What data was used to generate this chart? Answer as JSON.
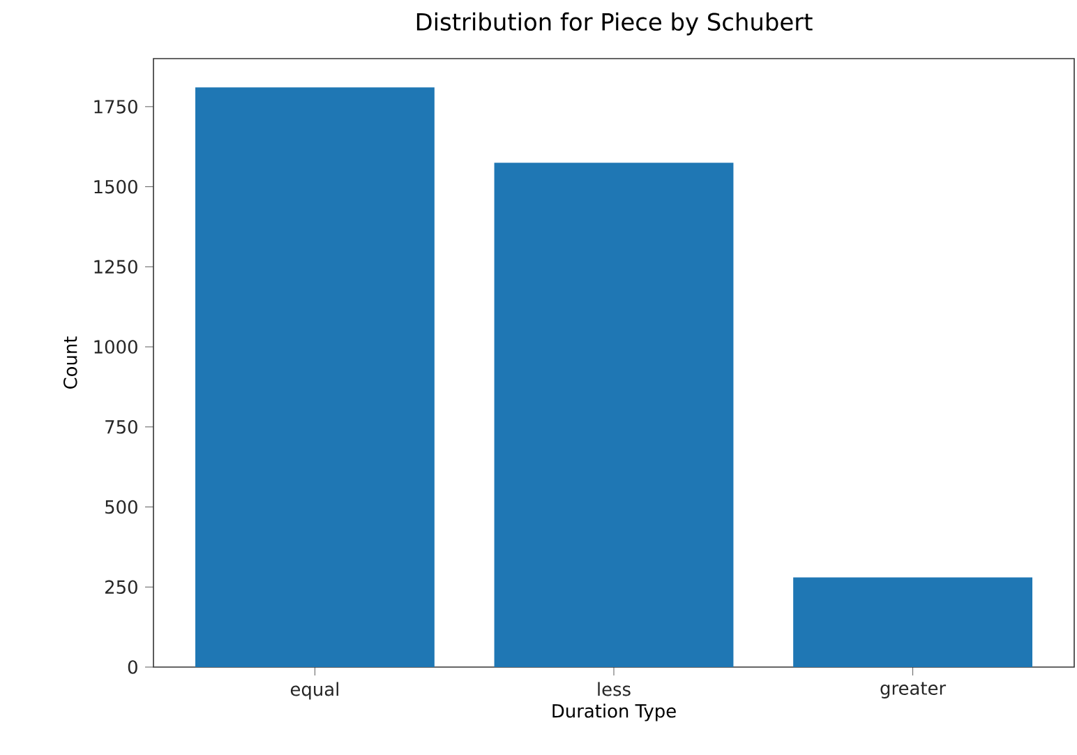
{
  "chart_data": {
    "type": "bar",
    "title": "Distribution for Piece by Schubert",
    "xlabel": "Duration Type",
    "ylabel": "Count",
    "categories": [
      "equal",
      "less",
      "greater"
    ],
    "values": [
      1810,
      1575,
      280
    ],
    "color": "#1f77b4",
    "ylim": [
      0,
      1900
    ],
    "yticks": [
      0,
      250,
      500,
      750,
      1000,
      1250,
      1500,
      1750
    ],
    "grid": false
  }
}
